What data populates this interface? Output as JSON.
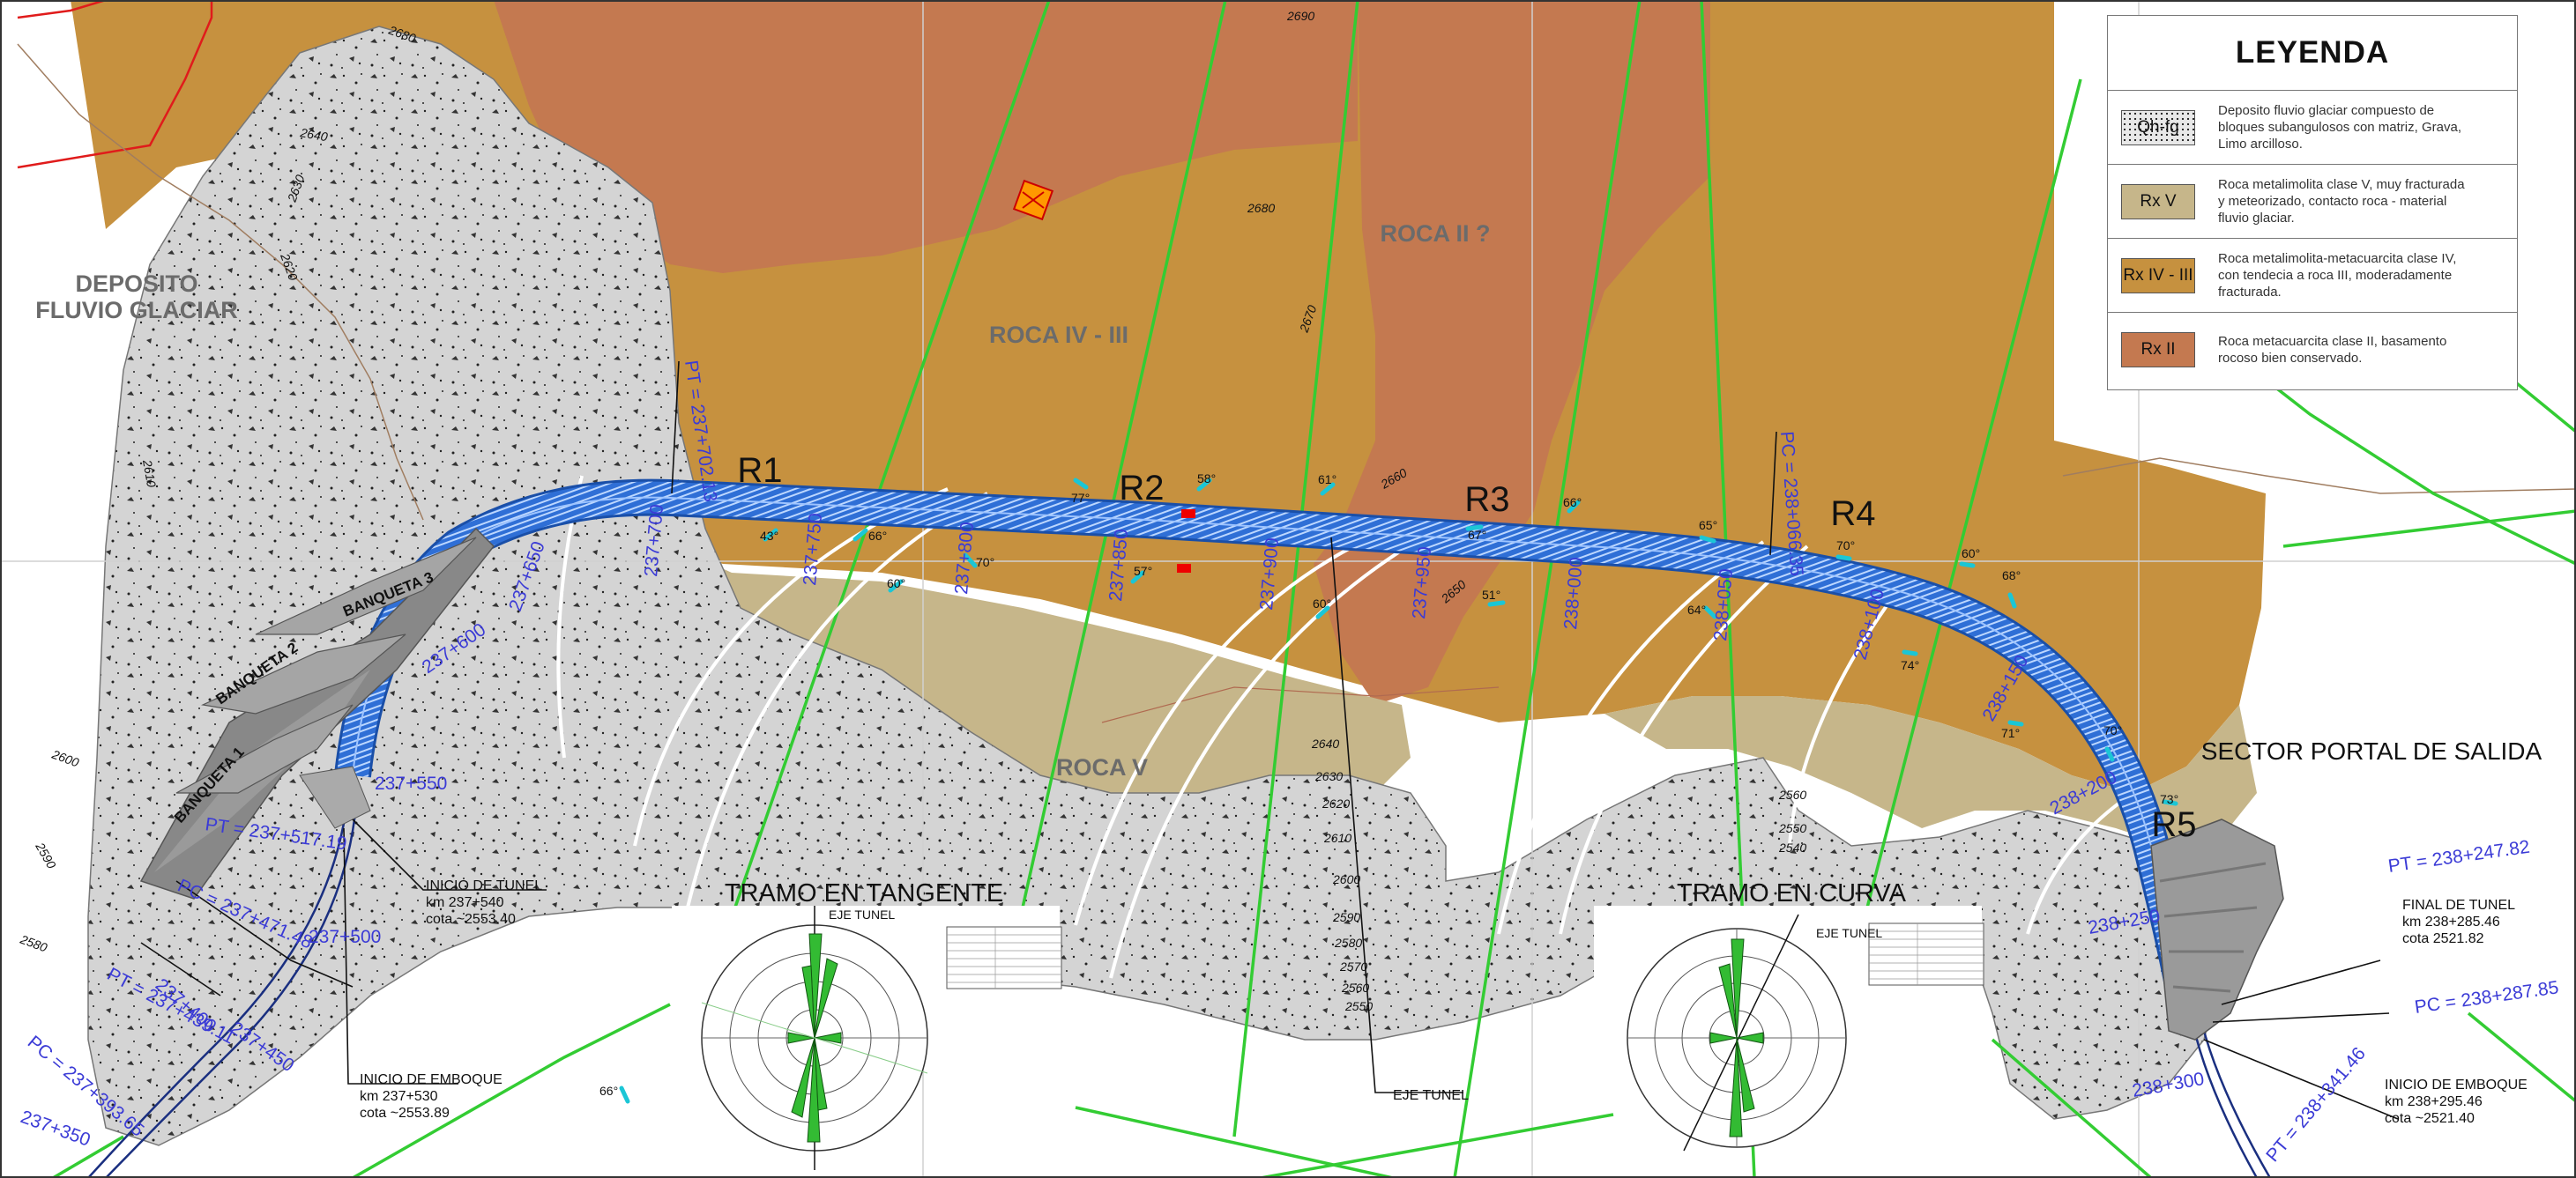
{
  "map": {
    "zones": {
      "deposit_line1": "DEPOSITO",
      "deposit_line2": "FLUVIO GLACIAR",
      "rock_iv_iii": "ROCA IV - III",
      "rock_ii": "ROCA II ?",
      "rock_v": "ROCA V",
      "exit_portal": "SECTOR PORTAL DE SALIDA"
    },
    "sections": [
      "R1",
      "R2",
      "R3",
      "R4",
      "R5"
    ],
    "banquetas": [
      "BANQUETA 3",
      "BANQUETA 2",
      "BANQUETA 1"
    ],
    "stations": {
      "s237_550": "237+550",
      "s237_600": "237+600",
      "s237_650": "237+650",
      "s237_700": "237+700",
      "s237_750": "237+750",
      "s237_800": "237+800",
      "s237_850": "237+850",
      "s237_900": "237+900",
      "s237_950": "237+950",
      "s238_000": "238+000",
      "s238_050": "238+050",
      "s238_100": "238+100",
      "s238_150": "238+150",
      "s238_200": "238+200",
      "s238_250": "238+250",
      "s238_300": "238+300",
      "s237_350": "237+350",
      "s237_400": "237+400",
      "s237_450": "237+450",
      "s237_500": "237+500"
    },
    "curve_points": {
      "pt_237_702": "PT = 237+702.13",
      "pc_238_066": "PC = 238+066.35",
      "pt_237_517": "PT = 237+517.19",
      "pc_237_471": "PC = 237+471.48",
      "pt_237_439": "PT = 237+439.11",
      "pc_237_393": "PC = 237+393.65",
      "pt_238_247": "PT = 238+247.82",
      "pc_238_287": "PC = 238+287.85",
      "pt_238_341": "PT = 238+341.46"
    },
    "contours": {
      "c2680a": "2680",
      "c2690": "2690",
      "c2680b": "2680",
      "c2670": "2670",
      "c2660": "2660",
      "c2650": "2650",
      "c2640w": "2640",
      "c2630w": "2630",
      "c2620w": "2620",
      "c2610w": "2610",
      "c2600w": "2600",
      "c2590w": "2590",
      "c2580w": "2580",
      "c2640": "2640",
      "c2630": "2630",
      "c2620": "2620",
      "c2610": "2610",
      "c2600": "2600",
      "c2590": "2590",
      "c2580": "2580",
      "c2570": "2570",
      "c2560": "2560",
      "c2550": "2550",
      "c2560e": "2560",
      "c2550e": "2550",
      "c2540e": "2540"
    },
    "dips": [
      "43°",
      "66°",
      "60°",
      "77°",
      "58°",
      "70°",
      "57°",
      "61°",
      "60°",
      "67°",
      "51°",
      "66°",
      "65°",
      "64°",
      "70°",
      "74°",
      "60°",
      "68°",
      "71°",
      "70°",
      "73°",
      "66°"
    ],
    "callouts": {
      "inicio_tunel_title": "INICIO  DE  TUNEL",
      "inicio_tunel_km": "km  237+540",
      "inicio_tunel_cota": "cota  ~2553.40",
      "inicio_emboque_w_title": "INICIO  DE  EMBOQUE",
      "inicio_emboque_w_km": "km  237+530",
      "inicio_emboque_w_cota": "cota  ~2553.89",
      "final_tunel_title": "FINAL  DE  TUNEL",
      "final_tunel_km": "km  238+285.46",
      "final_tunel_cota": "cota  2521.82",
      "inicio_emboque_e_title": "INICIO  DE  EMBOQUE",
      "inicio_emboque_e_km": "km  238+295.46",
      "inicio_emboque_e_cota": "cota  ~2521.40",
      "eje_tunel": "EJE  TUNEL"
    },
    "stereonets": {
      "tangent_title": "TRAMO EN TANGENTE",
      "curve_title": "TRAMO EN CURVA",
      "axis_label": "EJE TUNEL"
    },
    "colors": {
      "rock_ii": "#c47950",
      "rock_iv_iii": "#c6913f",
      "rock_v": "#c6b68a",
      "deposit": "#d4d4d4",
      "tunnel": "#2f6fd6",
      "fault": "#33cc33",
      "station_text": "#3b3bd6"
    }
  },
  "legend": {
    "title": "LEYENDA",
    "items": [
      {
        "symbol": "Qh-fg",
        "color": "#e8e8e8",
        "description": "Deposito fluvio glaciar compuesto de bloques subangulosos con matriz, Grava, Limo arcilloso."
      },
      {
        "symbol": "Rx V",
        "color": "#c6b68a",
        "description": "Roca metalimolita clase V, muy fracturada y meteorizado, contacto roca - material  fluvio glaciar."
      },
      {
        "symbol": "Rx IV - III",
        "color": "#c6913f",
        "description": "Roca metalimolita-metacuarcita clase IV, con tendecia  a roca III, moderadamente fracturada."
      },
      {
        "symbol": "Rx II",
        "color": "#c47950",
        "description": "Roca metacuarcita clase II, basamento rocoso bien conservado."
      }
    ]
  }
}
